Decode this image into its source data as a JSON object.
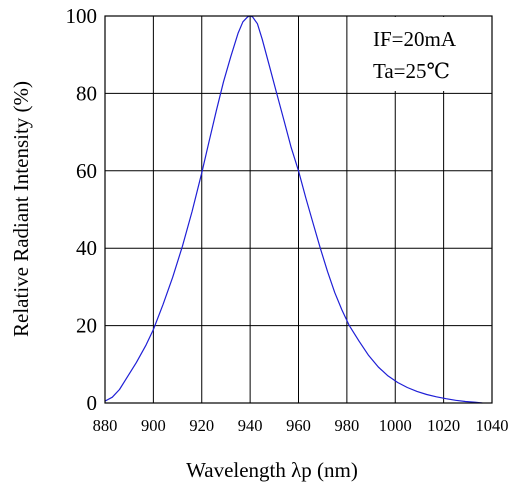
{
  "chart_data": {
    "type": "line",
    "title": "",
    "xlabel": "Wavelength λp (nm)",
    "ylabel": "Relative Radiant Intensity (%)",
    "xlim": [
      880,
      1040
    ],
    "ylim": [
      0,
      100
    ],
    "x_ticks": [
      880,
      900,
      920,
      940,
      960,
      980,
      1000,
      1020,
      1040
    ],
    "y_ticks": [
      0,
      20,
      40,
      60,
      80,
      100
    ],
    "grid": true,
    "annotations": [
      "IF=20mA",
      "Ta=25℃"
    ],
    "line_color": "#1f1fd6",
    "series": [
      {
        "x": [
          880,
          883,
          886,
          889,
          893,
          897,
          900,
          904,
          908,
          912,
          916,
          920,
          923,
          926,
          929,
          932,
          935,
          937,
          939,
          940,
          941,
          943,
          945,
          948,
          951,
          954,
          957,
          960,
          963,
          966,
          969,
          972,
          975,
          978,
          981,
          985,
          989,
          993,
          997,
          1001,
          1005,
          1009,
          1013,
          1017,
          1021,
          1025,
          1029,
          1033,
          1036
        ],
        "y": [
          0.5,
          1.5,
          3.5,
          6.5,
          10.5,
          15,
          19,
          25.5,
          32.5,
          40.5,
          49.5,
          59.5,
          67.5,
          75.5,
          83,
          89.5,
          95.5,
          98.5,
          99.8,
          100,
          99.8,
          98,
          94,
          87,
          80,
          73,
          66,
          60,
          53,
          46.5,
          40,
          34,
          28.5,
          24,
          20,
          16,
          12.3,
          9.3,
          7,
          5.3,
          4,
          3,
          2.2,
          1.6,
          1.1,
          0.7,
          0.4,
          0.2,
          0
        ]
      }
    ]
  }
}
